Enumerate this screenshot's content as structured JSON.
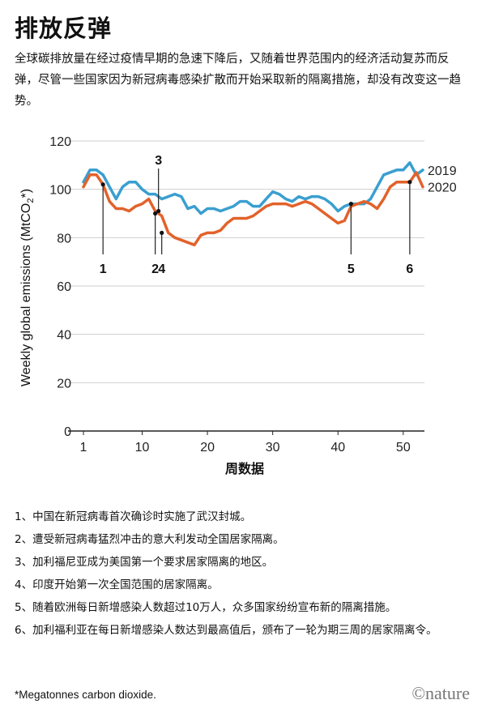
{
  "title": "排放反弹",
  "intro": "全球碳排放量在经过疫情早期的急速下降后，又随着世界范围内的经济活动复苏而反弹，尽管一些国家因为新冠病毒感染扩散而开始采取新的隔离措施，却没有改变这一趋势。",
  "chart_data": {
    "type": "line",
    "xlabel": "周数据",
    "ylabel": "Weekly global emissions (MtCO2*)",
    "xlim": [
      1,
      53
    ],
    "ylim": [
      0,
      120
    ],
    "xticks": [
      1,
      10,
      20,
      30,
      40,
      50
    ],
    "yticks": [
      0,
      20,
      40,
      60,
      80,
      100,
      120
    ],
    "grid": "horizontal",
    "colors": {
      "2019": "#3a9fd0",
      "2020": "#e2622b"
    },
    "series": [
      {
        "name": "2019",
        "x": [
          1,
          2,
          3,
          4,
          5,
          6,
          7,
          8,
          9,
          10,
          11,
          12,
          13,
          14,
          15,
          16,
          17,
          18,
          19,
          20,
          21,
          22,
          23,
          24,
          25,
          26,
          27,
          28,
          29,
          30,
          31,
          32,
          33,
          34,
          35,
          36,
          37,
          38,
          39,
          40,
          41,
          42,
          43,
          44,
          45,
          46,
          47,
          48,
          49,
          50,
          51,
          52,
          53
        ],
        "values": [
          103,
          108,
          108,
          106,
          101,
          96,
          101,
          103,
          103,
          100,
          98,
          98,
          96,
          97,
          98,
          97,
          92,
          93,
          90,
          92,
          92,
          91,
          92,
          93,
          95,
          95,
          93,
          93,
          96,
          99,
          98,
          96,
          95,
          97,
          96,
          97,
          97,
          96,
          94,
          91,
          93,
          94,
          94,
          94,
          96,
          101,
          106,
          107,
          108,
          108,
          111,
          106,
          108
        ]
      },
      {
        "name": "2020",
        "x": [
          1,
          2,
          3,
          4,
          5,
          6,
          7,
          8,
          9,
          10,
          11,
          12,
          13,
          14,
          15,
          16,
          17,
          18,
          19,
          20,
          21,
          22,
          23,
          24,
          25,
          26,
          27,
          28,
          29,
          30,
          31,
          32,
          33,
          34,
          35,
          36,
          37,
          38,
          39,
          40,
          41,
          42,
          43,
          44,
          45,
          46,
          47,
          48,
          49,
          50,
          51,
          52,
          53
        ],
        "values": [
          101,
          106,
          106,
          102,
          95,
          92,
          92,
          91,
          93,
          94,
          96,
          91,
          89,
          82,
          80,
          79,
          78,
          77,
          81,
          82,
          82,
          83,
          86,
          88,
          88,
          88,
          89,
          91,
          93,
          94,
          94,
          94,
          93,
          94,
          95,
          94,
          92,
          90,
          88,
          86,
          87,
          93,
          94,
          95,
          94,
          92,
          96,
          101,
          103,
          103,
          103,
          107,
          101
        ]
      }
    ],
    "annotations": [
      {
        "label": "1",
        "week": 4,
        "value": 102
      },
      {
        "label": "2",
        "week": 12,
        "value": 90
      },
      {
        "label": "3",
        "week": 12.5,
        "value": 91
      },
      {
        "label": "4",
        "week": 13,
        "value": 82
      },
      {
        "label": "5",
        "week": 42,
        "value": 94
      },
      {
        "label": "6",
        "week": 51,
        "value": 103
      }
    ]
  },
  "notes": [
    "1、中国在新冠病毒首次确诊时实施了武汉封城。",
    "2、遭受新冠病毒猛烈冲击的意大利发动全国居家隔离。",
    "3、加利福尼亚成为美国第一个要求居家隔离的地区。",
    "4、印度开始第一次全国范围的居家隔离。",
    "5、随着欧洲每日新增感染人数超过10万人，众多国家纷纷宣布新的隔离措施。",
    "6、加利福利亚在每日新增感染人数达到最高值后，颁布了一轮为期三周的居家隔离令。"
  ],
  "footnote": "*Megatonnes carbon dioxide.",
  "logo": "©nature"
}
